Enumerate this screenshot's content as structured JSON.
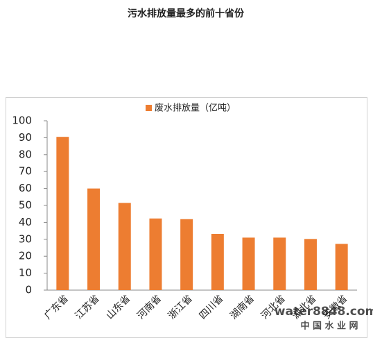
{
  "chart_data": {
    "type": "bar",
    "title": "污水排放量最多的前十省份",
    "categories": [
      "广东省",
      "江苏省",
      "山东省",
      "河南省",
      "浙江省",
      "四川省",
      "湖南省",
      "河北省",
      "湖北省",
      "安徽省"
    ],
    "series": [
      {
        "name": "废水排放量（亿吨）",
        "color": "#ed7d31",
        "values": [
          90.5,
          60,
          51.5,
          42.3,
          41.9,
          33.2,
          31,
          31,
          30.2,
          27.3
        ]
      }
    ],
    "ylim": [
      0,
      100
    ],
    "yticks": [
      0,
      10,
      20,
      30,
      40,
      50,
      60,
      70,
      80,
      90,
      100
    ],
    "watermark": [
      "water8848.com",
      "中 国 水 业 网"
    ]
  }
}
